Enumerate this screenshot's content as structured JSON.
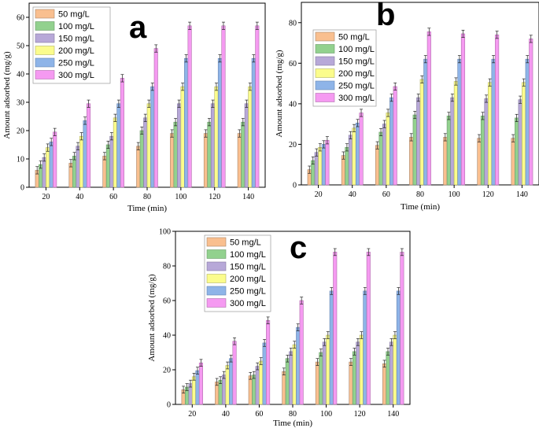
{
  "series_names": [
    "50 mg/L",
    "100 mg/L",
    "150 mg/L",
    "200 mg/L",
    "250 mg/L",
    "300 mg/L"
  ],
  "colors": [
    "#f9bf8f",
    "#92d18e",
    "#b7a8d8",
    "#fbfc8c",
    "#8eb4e8",
    "#f59af1"
  ],
  "edge_colors": [
    "#a8866a",
    "#6a9a68",
    "#857aa0",
    "#b5b560",
    "#6684b0",
    "#b06eac"
  ],
  "chart_data": [
    {
      "type": "bar",
      "panel": "a",
      "categories": [
        20,
        40,
        60,
        80,
        100,
        120,
        140
      ],
      "xlabel": "Time (min)",
      "ylabel": "Amount adsorbed (mg/g)",
      "ylim": [
        0,
        65
      ],
      "yticks": [
        0,
        10,
        20,
        30,
        40,
        50,
        60
      ],
      "legend": "top-left",
      "series": [
        {
          "name": "50 mg/L",
          "values": [
            6,
            8.5,
            11,
            14.5,
            19,
            19,
            19
          ]
        },
        {
          "name": "100 mg/L",
          "values": [
            8,
            11,
            15,
            20,
            23,
            23,
            23
          ]
        },
        {
          "name": "150 mg/L",
          "values": [
            10.5,
            14.5,
            18,
            24.5,
            29.5,
            29.5,
            29.5
          ]
        },
        {
          "name": "200 mg/L",
          "values": [
            14,
            18,
            24.5,
            29.5,
            35.5,
            35.5,
            35.5
          ]
        },
        {
          "name": "250 mg/L",
          "values": [
            16,
            23.5,
            29.5,
            35.5,
            45.5,
            45.5,
            45.5
          ]
        },
        {
          "name": "300 mg/L",
          "values": [
            19.5,
            29.5,
            38.5,
            49,
            57,
            57,
            57
          ]
        }
      ]
    },
    {
      "type": "bar",
      "panel": "b",
      "categories": [
        20,
        40,
        60,
        80,
        100,
        120,
        140
      ],
      "xlabel": "Time (min)",
      "ylabel": "Amount adsorbed (mg/g)",
      "ylim": [
        0,
        90
      ],
      "yticks": [
        0,
        20,
        40,
        60,
        80
      ],
      "legend": "top-left",
      "series": [
        {
          "name": "50 mg/L",
          "values": [
            7.5,
            14.5,
            19.5,
            23.5,
            23.5,
            23,
            23
          ]
        },
        {
          "name": "100 mg/L",
          "values": [
            12,
            18.5,
            26,
            34.5,
            34,
            34,
            33
          ]
        },
        {
          "name": "150 mg/L",
          "values": [
            16,
            24.5,
            30,
            43,
            43,
            42.5,
            42
          ]
        },
        {
          "name": "200 mg/L",
          "values": [
            18.5,
            28,
            35.5,
            52,
            51,
            50.5,
            50.5
          ]
        },
        {
          "name": "250 mg/L",
          "values": [
            20,
            30.5,
            43,
            62,
            62,
            62,
            62
          ]
        },
        {
          "name": "300 mg/L",
          "values": [
            22,
            35.5,
            48.5,
            75.5,
            74.5,
            74,
            72
          ]
        }
      ]
    },
    {
      "type": "bar",
      "panel": "c",
      "categories": [
        20,
        40,
        60,
        80,
        100,
        120,
        140
      ],
      "xlabel": "Time (min)",
      "ylabel": "Amount adsorbed (mg/g)",
      "ylim": [
        0,
        100
      ],
      "yticks": [
        0,
        20,
        40,
        60,
        80,
        100
      ],
      "legend": "top-left",
      "series": [
        {
          "name": "50 mg/L",
          "values": [
            8.5,
            13,
            16.5,
            19,
            24.5,
            24.5,
            23.5
          ]
        },
        {
          "name": "100 mg/L",
          "values": [
            10,
            14,
            17,
            26.5,
            30,
            30.5,
            30.5
          ]
        },
        {
          "name": "150 mg/L",
          "values": [
            12,
            17,
            22,
            30.5,
            36,
            36,
            36
          ]
        },
        {
          "name": "200 mg/L",
          "values": [
            16,
            22.5,
            25,
            34.5,
            40,
            40,
            40
          ]
        },
        {
          "name": "250 mg/L",
          "values": [
            19.5,
            26.5,
            35.5,
            44.5,
            65.5,
            65.5,
            65.5
          ]
        },
        {
          "name": "300 mg/L",
          "values": [
            24,
            36.5,
            48.5,
            60,
            88,
            88,
            88
          ]
        }
      ]
    }
  ]
}
